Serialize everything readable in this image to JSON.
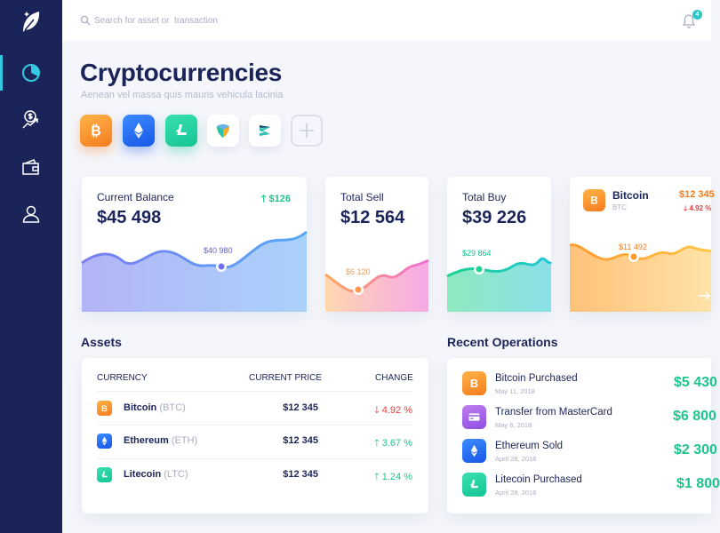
{
  "search": {
    "placeholder": "Search for asset or  transaction"
  },
  "notifications": {
    "count": "4"
  },
  "header": {
    "title": "Cryptocurrencies",
    "subtitle": "Aenean vel massa quis mauris vehicula lacinia"
  },
  "colors": {
    "sidebar": "#1b2459",
    "accent": "#33c9e0",
    "positive": "#1ec48e",
    "negative": "#ef3b3b",
    "bitcoin": "#f78e2a",
    "ethereum": "#2a6ff2",
    "litecoin": "#22d3a2"
  },
  "cards": {
    "balance": {
      "label": "Current Balance",
      "value": "$45 498",
      "change": "$126",
      "change_arrow": "🡑",
      "tooltip": "$40 980"
    },
    "sell": {
      "label": "Total Sell",
      "value": "$12 564",
      "tooltip": "$6 120"
    },
    "buy": {
      "label": "Total Buy",
      "value": "$39 226",
      "tooltip": "$29 864"
    },
    "bitcoin": {
      "name": "Bitcoin",
      "ticker": "BTC",
      "price": "$12 345",
      "change": "4.92 %",
      "change_arrow": "🡓",
      "tooltip": "$11 492"
    }
  },
  "assets": {
    "title": "Assets",
    "columns": [
      "CURRENCY",
      "CURRENT PRICE",
      "CHANGE"
    ],
    "rows": [
      {
        "name": "Bitcoin",
        "ticker": "(BTC)",
        "price": "$12 345",
        "change": "4.92 %",
        "arrow": "🡓",
        "direction": "down"
      },
      {
        "name": "Ethereum",
        "ticker": "(ETH)",
        "price": "$12 345",
        "change": "3.67 %",
        "arrow": "🡑",
        "direction": "up"
      },
      {
        "name": "Litecoin",
        "ticker": "(LTC)",
        "price": "$12 345",
        "change": "1.24 %",
        "arrow": "🡑",
        "direction": "up"
      }
    ]
  },
  "operations": {
    "title": "Recent Operations",
    "items": [
      {
        "title": "Bitcoin Purchased",
        "date": "May 11, 2018",
        "amount": "$5 430",
        "icon": "bitcoin-icon"
      },
      {
        "title": "Transfer from MasterCard",
        "date": "May 6, 2018",
        "amount": "$6 800",
        "icon": "credit-card-icon"
      },
      {
        "title": "Ethereum Sold",
        "date": "April 28, 2018",
        "amount": "$2 300",
        "icon": "ethereum-icon"
      },
      {
        "title": "Litecoin Purchased",
        "date": "April 28, 2018",
        "amount": "$1 800",
        "icon": "litecoin-icon"
      }
    ]
  }
}
